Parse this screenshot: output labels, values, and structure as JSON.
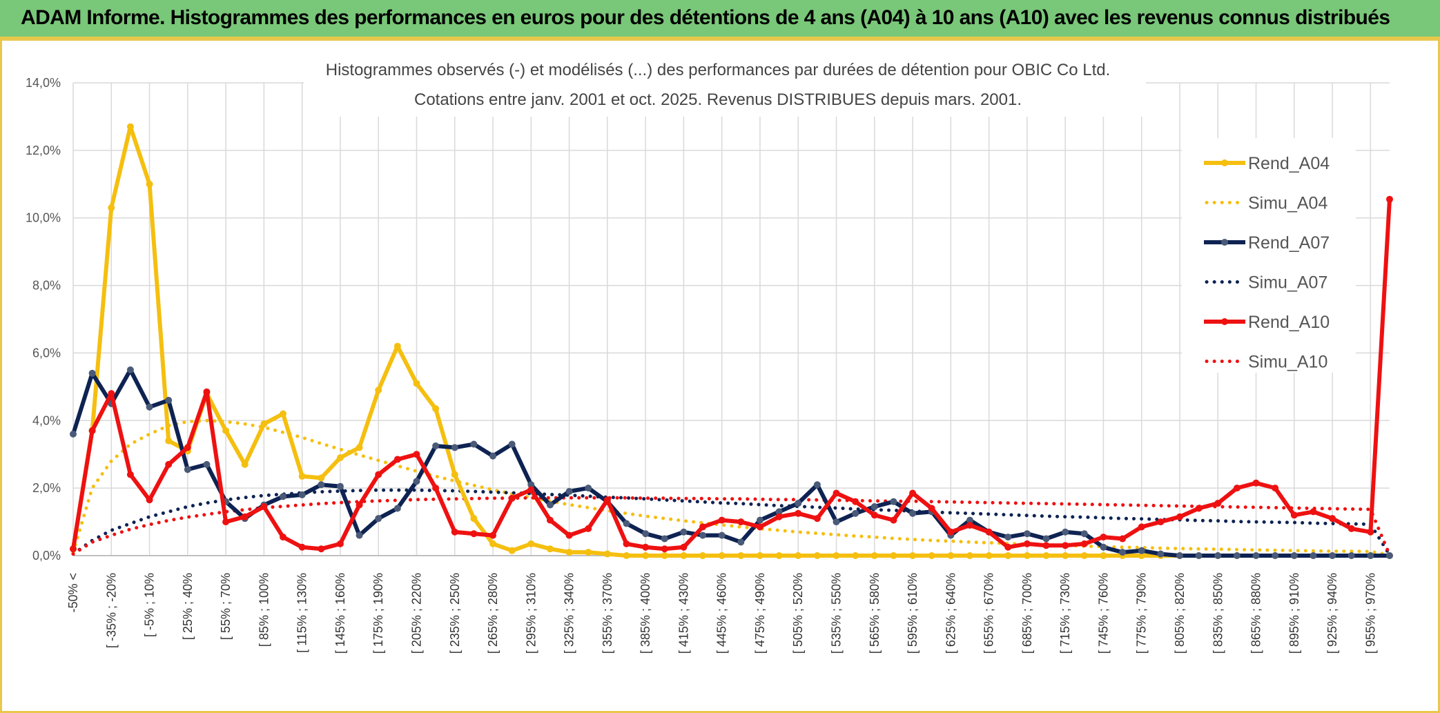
{
  "header": {
    "title": "ADAM Informe. Histogrammes des performances en euros pour des détentions de 4 ans (A04) à 10 ans (A10) avec les revenus connus distribués"
  },
  "chart_data": {
    "type": "line",
    "title_line1": "Histogrammes observés (-) et modélisés (...) des performances par durées de détention pour OBIC Co Ltd.",
    "title_line2": "Cotations entre janv. 2001 et oct. 2025. Revenus DISTRIBUES depuis mars. 2001.",
    "ylim": [
      0,
      14
    ],
    "y_ticks": [
      "0,0%",
      "2,0%",
      "4,0%",
      "6,0%",
      "8,0%",
      "10,0%",
      "12,0%",
      "14,0%"
    ],
    "x_tick_labels": [
      "-50% <",
      "[ -35% ; -20%",
      "[ -5% ; 10%",
      "[ 25% ; 40%",
      "[ 55% ; 70%",
      "[ 85% ; 100%",
      "[ 115% ; 130%",
      "[ 145% ; 160%",
      "[ 175% ; 190%",
      "[ 205% ; 220%",
      "[ 235% ; 250%",
      "[ 265% ; 280%",
      "[ 295% ; 310%",
      "[ 325% ; 340%",
      "[ 355% ; 370%",
      "[ 385% ; 400%",
      "[ 415% ; 430%",
      "[ 445% ; 460%",
      "[ 475% ; 490%",
      "[ 505% ; 520%",
      "[ 535% ; 550%",
      "[ 565% ; 580%",
      "[ 595% ; 610%",
      "[ 625% ; 640%",
      "[ 655% ; 670%",
      "[ 685% ; 700%",
      "[ 715% ; 730%",
      "[ 745% ; 760%",
      "[ 775% ; 790%",
      "[ 805% ; 820%",
      "[ 835% ; 850%",
      "[ 865% ; 880%",
      "[ 895% ; 910%",
      "[ 925% ; 940%",
      "[ 955% ; 970%"
    ],
    "category_count": 70,
    "series": [
      {
        "name": "Rend_A04",
        "color": "#f5bf10",
        "style": "solid",
        "values": [
          0.2,
          3.7,
          10.3,
          12.7,
          11.0,
          3.4,
          3.1,
          4.8,
          3.7,
          2.7,
          3.9,
          4.2,
          2.35,
          2.3,
          2.9,
          3.2,
          4.9,
          6.2,
          5.1,
          4.35,
          2.4,
          1.1,
          0.35,
          0.15,
          0.35,
          0.2,
          0.1,
          0.1,
          0.05,
          0.0,
          0.0,
          0.0,
          0.0,
          0.0,
          0.0,
          0.0,
          0.0,
          0.0,
          0.0,
          0.0,
          0.0,
          0.0,
          0.0,
          0.0,
          0.0,
          0.0,
          0.0,
          0.0,
          0.0,
          0.0,
          0.0,
          0.0,
          0.0,
          0.0,
          0.0,
          0.0,
          0.0,
          0.0,
          0.0,
          0.0,
          0.0,
          0.0,
          0.0,
          0.0,
          0.0,
          0.0,
          0.0,
          0.0,
          0.0,
          0.0
        ]
      },
      {
        "name": "Simu_A04",
        "color": "#f5bf10",
        "style": "dotted",
        "values": [
          0.1,
          2.0,
          2.8,
          3.3,
          3.6,
          3.85,
          3.97,
          4.0,
          3.97,
          3.9,
          3.8,
          3.65,
          3.5,
          3.32,
          3.15,
          2.98,
          2.82,
          2.66,
          2.5,
          2.35,
          2.21,
          2.08,
          1.95,
          1.83,
          1.72,
          1.61,
          1.51,
          1.42,
          1.33,
          1.25,
          1.17,
          1.1,
          1.03,
          0.97,
          0.91,
          0.85,
          0.8,
          0.75,
          0.7,
          0.66,
          0.62,
          0.58,
          0.55,
          0.51,
          0.48,
          0.45,
          0.43,
          0.4,
          0.38,
          0.36,
          0.34,
          0.32,
          0.3,
          0.28,
          0.27,
          0.25,
          0.24,
          0.22,
          0.21,
          0.2,
          0.19,
          0.18,
          0.17,
          0.16,
          0.15,
          0.14,
          0.13,
          0.13,
          0.12,
          0.02
        ]
      },
      {
        "name": "Rend_A07",
        "color": "#0e2352",
        "style": "solid",
        "values": [
          3.6,
          5.4,
          4.5,
          5.5,
          4.4,
          4.6,
          2.55,
          2.7,
          1.6,
          1.1,
          1.5,
          1.75,
          1.8,
          2.1,
          2.05,
          0.6,
          1.1,
          1.4,
          2.2,
          3.25,
          3.2,
          3.3,
          2.95,
          3.3,
          2.1,
          1.5,
          1.9,
          2.0,
          1.6,
          0.95,
          0.65,
          0.5,
          0.7,
          0.6,
          0.6,
          0.4,
          1.05,
          1.3,
          1.55,
          2.1,
          1.0,
          1.25,
          1.45,
          1.6,
          1.25,
          1.3,
          0.6,
          1.05,
          0.7,
          0.55,
          0.65,
          0.5,
          0.7,
          0.65,
          0.25,
          0.1,
          0.15,
          0.05,
          0.0,
          0.0,
          0.0,
          0.0,
          0.0,
          0.0,
          0.0,
          0.0,
          0.0,
          0.0,
          0.0,
          0.0
        ]
      },
      {
        "name": "Simu_A07",
        "color": "#0e2352",
        "style": "dotted",
        "values": [
          0.05,
          0.45,
          0.75,
          0.95,
          1.15,
          1.3,
          1.45,
          1.56,
          1.65,
          1.72,
          1.78,
          1.82,
          1.86,
          1.89,
          1.91,
          1.93,
          1.94,
          1.94,
          1.94,
          1.93,
          1.92,
          1.9,
          1.88,
          1.86,
          1.84,
          1.81,
          1.79,
          1.76,
          1.73,
          1.71,
          1.68,
          1.65,
          1.62,
          1.59,
          1.56,
          1.54,
          1.51,
          1.48,
          1.46,
          1.43,
          1.41,
          1.38,
          1.36,
          1.34,
          1.32,
          1.29,
          1.27,
          1.25,
          1.23,
          1.21,
          1.19,
          1.17,
          1.15,
          1.14,
          1.12,
          1.1,
          1.09,
          1.07,
          1.06,
          1.04,
          1.03,
          1.01,
          1.0,
          0.99,
          0.98,
          0.96,
          0.95,
          0.94,
          0.93,
          0.02
        ]
      },
      {
        "name": "Rend_A10",
        "color": "#ee1111",
        "style": "solid",
        "values": [
          0.2,
          3.7,
          4.8,
          2.4,
          1.65,
          2.7,
          3.2,
          4.85,
          1.0,
          1.15,
          1.45,
          0.55,
          0.25,
          0.2,
          0.35,
          1.5,
          2.4,
          2.85,
          3.0,
          2.0,
          0.7,
          0.65,
          0.6,
          1.7,
          1.95,
          1.05,
          0.6,
          0.8,
          1.65,
          0.35,
          0.25,
          0.2,
          0.25,
          0.85,
          1.05,
          1.0,
          0.85,
          1.15,
          1.25,
          1.1,
          1.85,
          1.6,
          1.2,
          1.05,
          1.85,
          1.4,
          0.7,
          0.9,
          0.7,
          0.25,
          0.35,
          0.3,
          0.3,
          0.35,
          0.55,
          0.5,
          0.85,
          1.0,
          1.15,
          1.4,
          1.55,
          2.0,
          2.15,
          2.0,
          1.2,
          1.3,
          1.1,
          0.8,
          0.7,
          10.55
        ]
      },
      {
        "name": "Simu_A10",
        "color": "#ee1111",
        "style": "dotted",
        "values": [
          0.05,
          0.4,
          0.6,
          0.78,
          0.92,
          1.04,
          1.14,
          1.22,
          1.3,
          1.36,
          1.42,
          1.46,
          1.5,
          1.54,
          1.57,
          1.6,
          1.62,
          1.64,
          1.66,
          1.67,
          1.68,
          1.69,
          1.7,
          1.7,
          1.71,
          1.71,
          1.71,
          1.71,
          1.71,
          1.71,
          1.7,
          1.7,
          1.69,
          1.69,
          1.68,
          1.68,
          1.67,
          1.66,
          1.66,
          1.65,
          1.64,
          1.63,
          1.62,
          1.61,
          1.61,
          1.6,
          1.59,
          1.58,
          1.57,
          1.56,
          1.55,
          1.54,
          1.53,
          1.52,
          1.51,
          1.5,
          1.49,
          1.48,
          1.47,
          1.46,
          1.45,
          1.44,
          1.43,
          1.42,
          1.41,
          1.4,
          1.39,
          1.38,
          1.37,
          0.02
        ]
      }
    ]
  }
}
